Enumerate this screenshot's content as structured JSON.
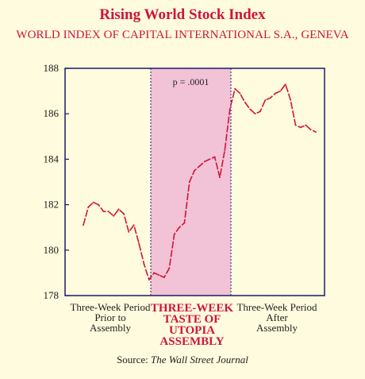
{
  "title": "Rising World Stock Index",
  "subtitle": "WORLD INDEX OF CAPITAL INTERNATIONAL S.A., GENEVA",
  "source_prefix": "Source: ",
  "source_name": "The Wall Street Journal",
  "colors": {
    "background": "#fffbde",
    "accent": "#d0143c",
    "highlight_fill": "#f2c2d6",
    "axis": "#1a1a6e"
  },
  "chart_data": {
    "type": "line",
    "title": "Rising World Stock Index",
    "subtitle": "WORLD INDEX OF CAPITAL INTERNATIONAL S.A., GENEVA",
    "ylim": [
      178,
      188
    ],
    "yticks": [
      178,
      180,
      182,
      184,
      186,
      188
    ],
    "grid": false,
    "series": [
      {
        "values": [
          181.1,
          181.9,
          182.1,
          182.0,
          181.7,
          181.7,
          181.5,
          181.8,
          181.6,
          180.8,
          181.1,
          180.3,
          179.4,
          178.7,
          179.0,
          178.9,
          178.8,
          179.2,
          180.7,
          181.0,
          181.2,
          183.0,
          183.5,
          183.7,
          183.9,
          184.0,
          184.1,
          183.2,
          184.4,
          186.2,
          187.1,
          186.9,
          186.5,
          186.2,
          186.0,
          186.1,
          186.6,
          186.7,
          186.9,
          187.0,
          187.3,
          186.6,
          185.5,
          185.4,
          185.5,
          185.3,
          185.2
        ]
      }
    ],
    "regions": [
      {
        "label": "Three-Week Period Prior to Assembly",
        "highlighted": false
      },
      {
        "label": "THREE-WEEK TASTE OF UTOPIA ASSEMBLY",
        "highlighted": true
      },
      {
        "label": "Three-Week Period After Assembly",
        "highlighted": false
      }
    ],
    "annotations": [
      {
        "text": "p = .0001"
      }
    ]
  },
  "region_labels": [
    [
      "Three-Week Period",
      "Prior to",
      "Assembly"
    ],
    [
      "THREE-WEEK",
      "TASTE OF",
      "UTOPIA",
      "ASSEMBLY"
    ],
    [
      "Three-Week Period",
      "After",
      "Assembly"
    ]
  ]
}
